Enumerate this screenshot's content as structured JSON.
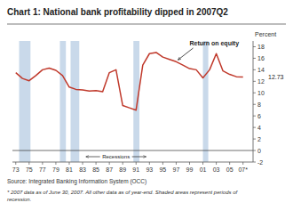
{
  "chart_data": {
    "type": "line",
    "title": "Chart 1: National bank profitability dipped in 2007Q2",
    "y_label": "Percent",
    "source": "Source: Integrated Banking Information System (OCC)",
    "footnote": "* 2007 data as of June 30, 2007. All other data as of year-end. Shaded areas represent periods of\nrecession.",
    "annotations": [
      "Return on equity",
      "12.73",
      "Recessions"
    ],
    "x": [
      73,
      74,
      75,
      76,
      77,
      78,
      79,
      80,
      81,
      82,
      83,
      84,
      85,
      86,
      87,
      88,
      89,
      90,
      91,
      92,
      93,
      94,
      95,
      96,
      97,
      98,
      99,
      100,
      101,
      102,
      103,
      104,
      105,
      106,
      107
    ],
    "values": [
      13.5,
      12.5,
      12.1,
      13.0,
      14.0,
      14.3,
      13.9,
      13.0,
      11.0,
      10.6,
      10.5,
      10.3,
      10.4,
      10.2,
      13.5,
      14.0,
      7.8,
      7.4,
      7.0,
      14.8,
      16.8,
      17.0,
      16.2,
      15.8,
      15.4,
      14.8,
      14.2,
      14.0,
      12.6,
      14.0,
      16.8,
      13.8,
      13.2,
      12.8,
      12.73
    ],
    "color": "#c0392b",
    "xlim": [
      72.5,
      108.5
    ],
    "xticks": [
      73,
      75,
      77,
      79,
      81,
      83,
      85,
      87,
      89,
      91,
      93,
      95,
      97,
      99,
      {
        "value": 101,
        "label": "01"
      },
      {
        "value": 103,
        "label": "03"
      },
      {
        "value": 105,
        "label": "05"
      },
      {
        "value": 107,
        "label": "07*"
      }
    ],
    "ylim": [
      -2,
      19
    ],
    "yticks": [
      -2,
      0,
      2,
      4,
      6,
      8,
      10,
      12,
      14,
      16,
      18
    ],
    "recession_bands": [
      [
        73.5,
        75.2
      ],
      [
        79.6,
        80.5
      ],
      [
        81.2,
        82.5
      ],
      [
        90.6,
        91.5
      ],
      [
        101.0,
        101.8
      ]
    ],
    "recession_color": "#c9d9ea"
  }
}
